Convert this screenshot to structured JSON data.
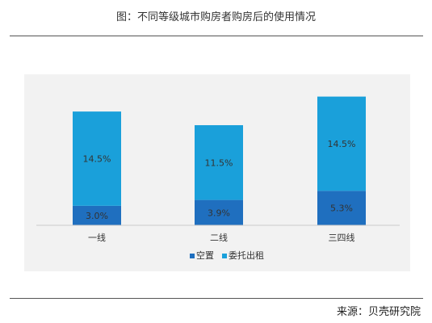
{
  "title": "图：不同等级城市购房者购房后的使用情况",
  "source": "来源：贝壳研究院",
  "colors": {
    "vacant": "#1f6fbf",
    "rented": "#1aa0da",
    "panel": "#f2f2f2",
    "axis": "#c9c9c9",
    "label": "#333333"
  },
  "chart_data": {
    "type": "bar",
    "stacked": true,
    "categories": [
      "一线",
      "二线",
      "三四线"
    ],
    "series": [
      {
        "name": "空置",
        "values": [
          3.0,
          3.9,
          5.3
        ],
        "labels": [
          "3.0%",
          "3.9%",
          "5.3%"
        ]
      },
      {
        "name": "委托出租",
        "values": [
          14.5,
          11.5,
          14.5
        ],
        "labels": [
          "14.5%",
          "11.5%",
          "14.5%"
        ]
      }
    ],
    "ylim": [
      0,
      20
    ],
    "grid": false,
    "legend": "bottom"
  }
}
